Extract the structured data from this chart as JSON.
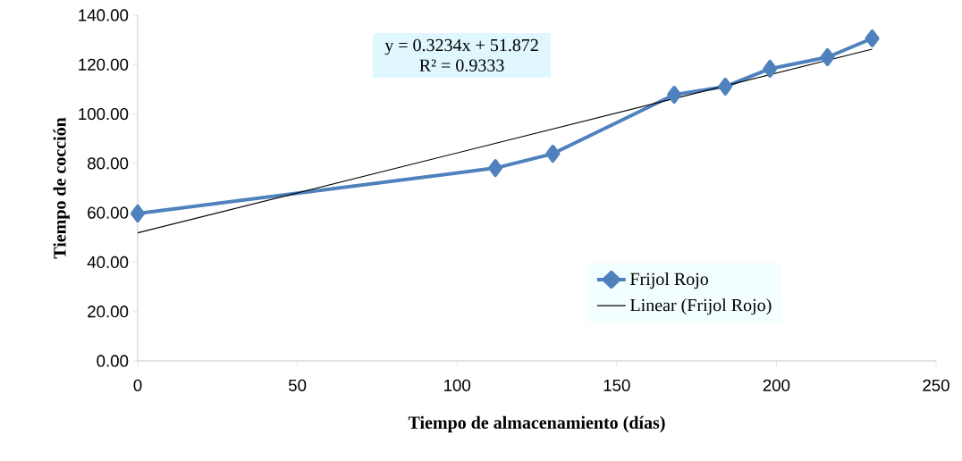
{
  "chart_data": {
    "type": "line",
    "xlabel": "Tiempo de almacenamiento (días)",
    "ylabel": "Tiempo de cocción",
    "x": [
      0,
      112,
      130,
      168,
      184,
      198,
      216,
      230
    ],
    "series": [
      {
        "name": "Frijol Rojo",
        "color": "#4f81bd",
        "marker": "diamond",
        "values": [
          59.7,
          78.1,
          83.9,
          107.8,
          111.1,
          118.3,
          123.0,
          130.6
        ]
      },
      {
        "name": "Linear (Frijol Rojo)",
        "type": "line",
        "color": "#000000",
        "marker": "none",
        "x": [
          0,
          230
        ],
        "values": [
          51.872,
          126.254
        ]
      }
    ],
    "annotations": [
      "y = 0.3234x + 51.872",
      "R² = 0.9333"
    ],
    "xlim": [
      0,
      250
    ],
    "xticks": [
      0,
      50,
      100,
      150,
      200,
      250
    ],
    "ylim": [
      0,
      140
    ],
    "yticks": [
      {
        "value": 0,
        "label": "0.00"
      },
      {
        "value": 20,
        "label": "20.00"
      },
      {
        "value": 40,
        "label": "40.00"
      },
      {
        "value": 60,
        "label": "60.00"
      },
      {
        "value": 80,
        "label": "80.00"
      },
      {
        "value": 100,
        "label": "100.00"
      },
      {
        "value": 120,
        "label": "120.00"
      },
      {
        "value": 140,
        "label": "140.00"
      }
    ],
    "grid": false,
    "legend": "right"
  }
}
